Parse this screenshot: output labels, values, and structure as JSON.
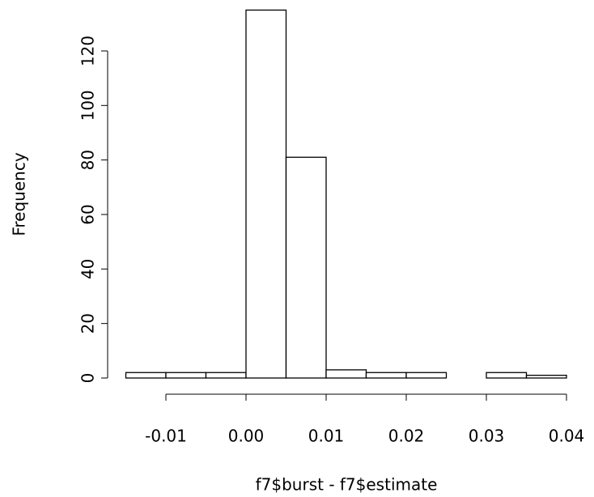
{
  "chart_data": {
    "type": "histogram",
    "x_label": "f7$burst - f7$estimate",
    "y_label": "Frequency",
    "bins": [
      -0.015,
      -0.01,
      -0.005,
      0,
      0.005,
      0.01,
      0.015,
      0.02,
      0.025,
      0.03,
      0.035,
      0.04
    ],
    "values": [
      2,
      2,
      2,
      135,
      81,
      3,
      2,
      2,
      0,
      2,
      1
    ],
    "color": "#ffffff",
    "xlim": [
      -0.015,
      0.04
    ],
    "xticks": [
      -0.01,
      {
        "value": 0,
        "label": "0.00"
      },
      0.01,
      0.02,
      0.03,
      0.04
    ],
    "ylim": [
      0,
      140
    ],
    "yticks": [
      0,
      20,
      40,
      60,
      80,
      100,
      120
    ],
    "grid": false
  }
}
